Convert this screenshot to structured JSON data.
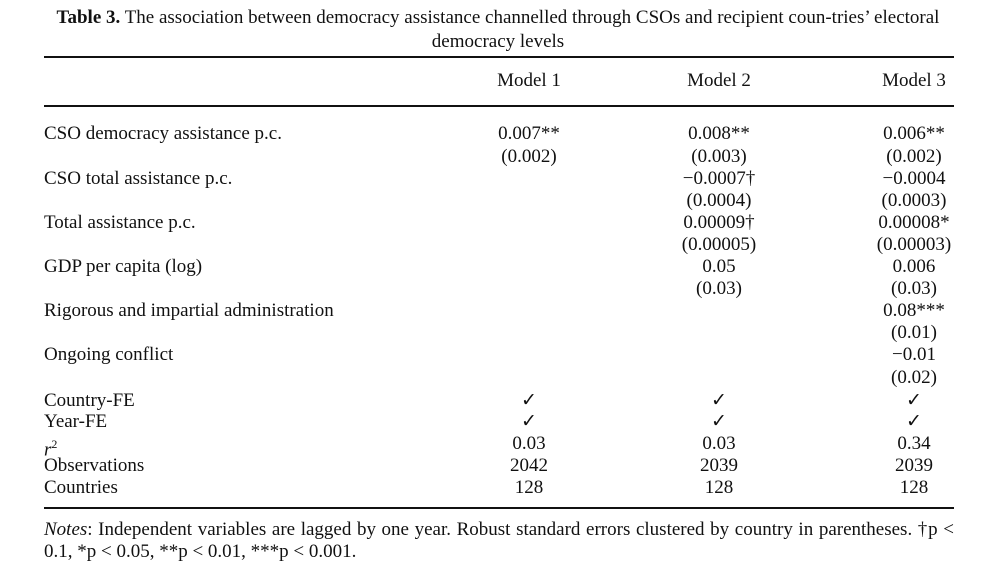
{
  "caption": {
    "number": "Table 3.",
    "text": "The association between democracy assistance channelled through CSOs and recipient coun-tries’ electoral democracy levels"
  },
  "columns": [
    "Model 1",
    "Model 2",
    "Model 3"
  ],
  "rows": [
    {
      "label": "CSO democracy assistance p.c.",
      "values": [
        "0.007**",
        "0.008**",
        "0.006**"
      ],
      "se": [
        "(0.002)",
        "(0.003)",
        "(0.002)"
      ]
    },
    {
      "label": "CSO total assistance p.c.",
      "values": [
        "",
        "−0.0007†",
        "−0.0004"
      ],
      "se": [
        "",
        "(0.0004)",
        "(0.0003)"
      ]
    },
    {
      "label": "Total assistance p.c.",
      "values": [
        "",
        "0.00009†",
        "0.00008*"
      ],
      "se": [
        "",
        "(0.00005)",
        "(0.00003)"
      ]
    },
    {
      "label": "GDP per capita (log)",
      "values": [
        "",
        "0.05",
        "0.006"
      ],
      "se": [
        "",
        "(0.03)",
        "(0.03)"
      ]
    },
    {
      "label": "Rigorous and impartial administration",
      "values": [
        "",
        "",
        "0.08***"
      ],
      "se": [
        "",
        "",
        "(0.01)"
      ]
    },
    {
      "label": "Ongoing conflict",
      "values": [
        "",
        "",
        "−0.01"
      ],
      "se": [
        "",
        "",
        "(0.02)"
      ]
    }
  ],
  "footer_rows": [
    {
      "label": "Country-FE",
      "values": [
        "✓",
        "✓",
        "✓"
      ]
    },
    {
      "label": "Year-FE",
      "values": [
        "✓",
        "✓",
        "✓"
      ]
    },
    {
      "label": "r",
      "sup": "2",
      "values": [
        "0.03",
        "0.03",
        "0.34"
      ]
    },
    {
      "label": "Observations",
      "values": [
        "2042",
        "2039",
        "2039"
      ]
    },
    {
      "label": "Countries",
      "values": [
        "128",
        "128",
        "128"
      ]
    }
  ],
  "notes": {
    "lead": "Notes",
    "text": ": Independent variables are lagged by one year. Robust standard errors clustered by country in parentheses. †p < 0.1, *p < 0.05, **p < 0.01, ***p < 0.001."
  }
}
